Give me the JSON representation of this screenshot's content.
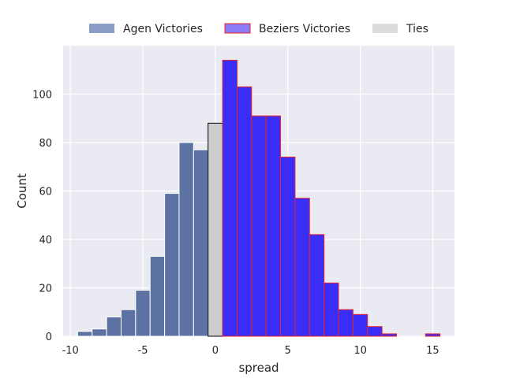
{
  "chart_data": {
    "type": "bar",
    "subtype": "histogram",
    "xlabel": "spread",
    "ylabel": "Count",
    "xlim": [
      -10.5,
      16.5
    ],
    "ylim": [
      0,
      120
    ],
    "x_ticks": [
      -10,
      -5,
      0,
      5,
      10,
      15
    ],
    "y_ticks": [
      0,
      20,
      40,
      60,
      80,
      100
    ],
    "grid": true,
    "bin_width": 1,
    "legend": {
      "placement": "top-center-outside",
      "entries": [
        {
          "label": "Agen Victories",
          "color": "#8a9dc4"
        },
        {
          "label": "Beziers Victories",
          "color": "#8a7cf6"
        },
        {
          "label": "Ties",
          "color": "#dcdcdc"
        }
      ]
    },
    "series": [
      {
        "name": "Agen Victories",
        "fill": "#5b72a3",
        "edge": "#ffffff",
        "x": [
          -9,
          -8,
          -7,
          -6,
          -5,
          -4,
          -3,
          -2,
          -1
        ],
        "values": [
          2,
          3,
          8,
          11,
          19,
          33,
          59,
          80,
          77
        ]
      },
      {
        "name": "Ties",
        "fill": "#cdcdcd",
        "edge": "#000000",
        "x": [
          0
        ],
        "values": [
          88
        ]
      },
      {
        "name": "Beziers Victories",
        "fill": "#3a2ef6",
        "edge": "#e8252c",
        "x": [
          1,
          2,
          3,
          4,
          5,
          6,
          7,
          8,
          9,
          10,
          11,
          12,
          15
        ],
        "values": [
          114,
          103,
          91,
          91,
          74,
          57,
          42,
          22,
          11,
          9,
          4,
          1,
          1
        ]
      }
    ]
  }
}
